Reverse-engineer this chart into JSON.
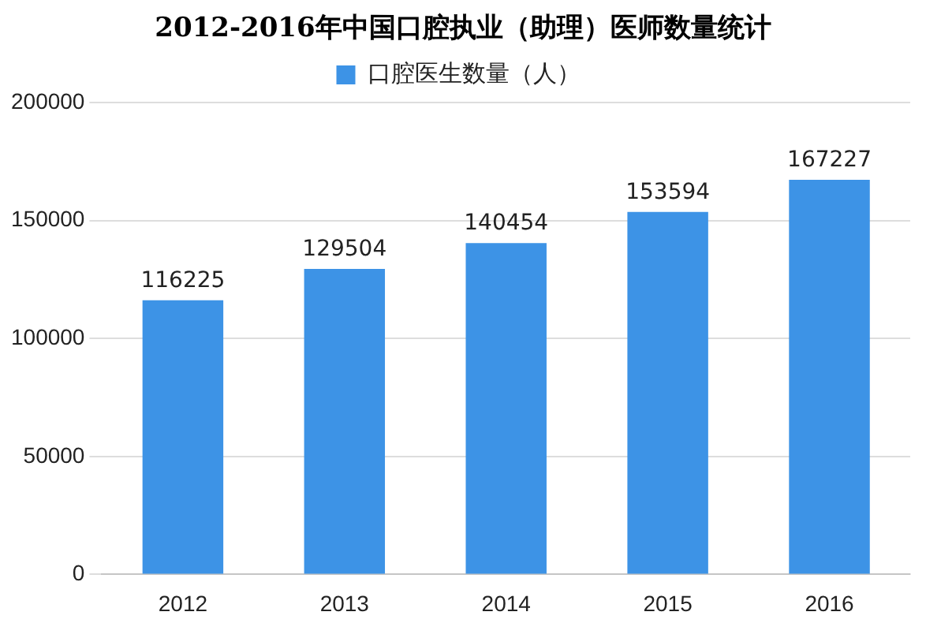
{
  "chart_data": {
    "type": "bar",
    "title": "2012-2016年中国口腔执业（助理）医师数量统计",
    "categories": [
      "2012",
      "2013",
      "2014",
      "2015",
      "2016"
    ],
    "series": [
      {
        "name": "口腔医生数量（人）",
        "color": "#3d93e6",
        "values": [
          116225,
          129504,
          140454,
          153594,
          167227
        ]
      }
    ],
    "ylim": [
      0,
      200000
    ],
    "yticks": [
      0,
      50000,
      100000,
      150000,
      200000
    ],
    "grid": "y",
    "legend": "top",
    "data_labels": true
  }
}
